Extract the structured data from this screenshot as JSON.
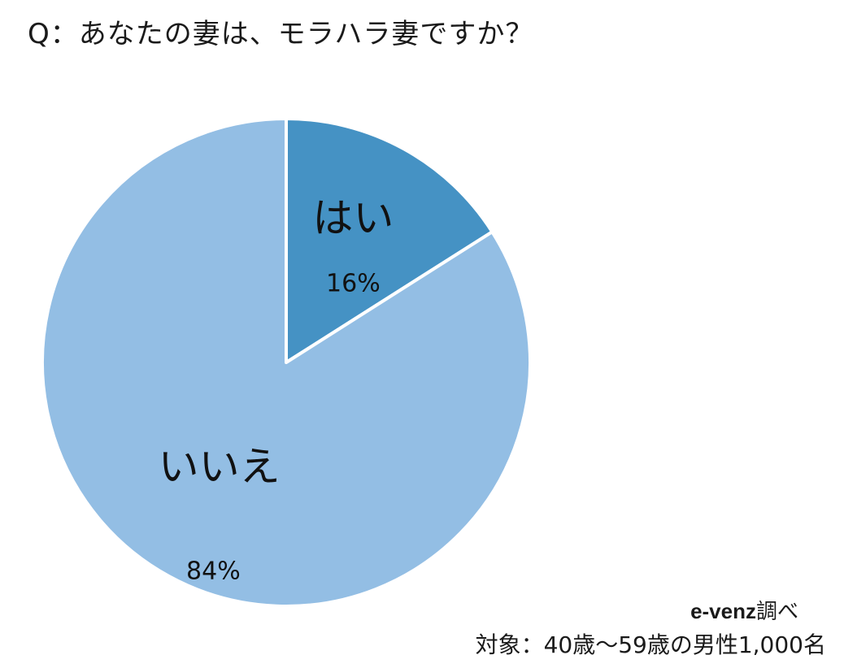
{
  "chart_data": {
    "type": "pie",
    "title": "Q：あなたの妻は、モラハラ妻ですか？",
    "slices": [
      {
        "label": "はい",
        "value": 16,
        "value_label": "16%",
        "color": "#4592c4"
      },
      {
        "label": "いいえ",
        "value": 84,
        "value_label": "84%",
        "color": "#93bee4"
      }
    ],
    "start_angle": "12 o'clock",
    "direction": "clockwise",
    "legend": "none",
    "slice_border_color": "#ffffff"
  },
  "source": {
    "brand": "e-venz",
    "suffix": "調べ"
  },
  "subject": "対象：40歳〜59歳の男性1,000名"
}
